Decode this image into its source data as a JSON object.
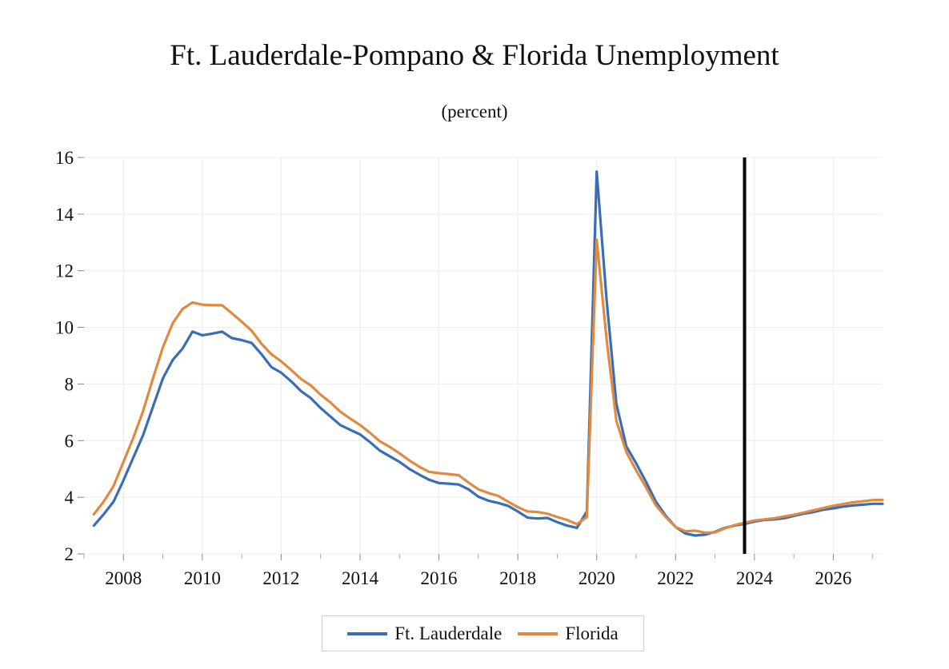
{
  "chart_data": {
    "type": "line",
    "title": "Ft. Lauderdale-Pompano & Florida Unemployment",
    "subtitle": "(percent)",
    "xlabel": "",
    "ylabel": "",
    "x_range": [
      2007.0,
      2027.25
    ],
    "ylim": [
      2,
      16
    ],
    "yticks": [
      2,
      4,
      6,
      8,
      10,
      12,
      14,
      16
    ],
    "xticks": [
      2008,
      2010,
      2012,
      2014,
      2016,
      2018,
      2020,
      2022,
      2024,
      2026
    ],
    "grid": true,
    "forecast_marker": 2023.75,
    "legend_position": "bottom-center",
    "series": [
      {
        "name": "Ft. Lauderdale",
        "color": "#3a6db5",
        "points": [
          [
            2007.25,
            3.0
          ],
          [
            2007.5,
            3.4
          ],
          [
            2007.75,
            3.85
          ],
          [
            2008.0,
            4.6
          ],
          [
            2008.25,
            5.4
          ],
          [
            2008.5,
            6.2
          ],
          [
            2008.75,
            7.2
          ],
          [
            2009.0,
            8.2
          ],
          [
            2009.25,
            8.85
          ],
          [
            2009.5,
            9.25
          ],
          [
            2009.75,
            9.85
          ],
          [
            2010.0,
            9.72
          ],
          [
            2010.25,
            9.78
          ],
          [
            2010.5,
            9.85
          ],
          [
            2010.75,
            9.62
          ],
          [
            2011.0,
            9.55
          ],
          [
            2011.25,
            9.45
          ],
          [
            2011.5,
            9.05
          ],
          [
            2011.75,
            8.6
          ],
          [
            2012.0,
            8.4
          ],
          [
            2012.25,
            8.1
          ],
          [
            2012.5,
            7.75
          ],
          [
            2012.75,
            7.5
          ],
          [
            2013.0,
            7.15
          ],
          [
            2013.25,
            6.85
          ],
          [
            2013.5,
            6.55
          ],
          [
            2013.75,
            6.38
          ],
          [
            2014.0,
            6.22
          ],
          [
            2014.25,
            5.95
          ],
          [
            2014.5,
            5.65
          ],
          [
            2014.75,
            5.45
          ],
          [
            2015.0,
            5.25
          ],
          [
            2015.25,
            5.0
          ],
          [
            2015.5,
            4.8
          ],
          [
            2015.75,
            4.62
          ],
          [
            2016.0,
            4.5
          ],
          [
            2016.25,
            4.48
          ],
          [
            2016.5,
            4.45
          ],
          [
            2016.75,
            4.28
          ],
          [
            2017.0,
            4.02
          ],
          [
            2017.25,
            3.88
          ],
          [
            2017.5,
            3.8
          ],
          [
            2017.75,
            3.7
          ],
          [
            2018.0,
            3.5
          ],
          [
            2018.25,
            3.28
          ],
          [
            2018.5,
            3.25
          ],
          [
            2018.75,
            3.27
          ],
          [
            2019.0,
            3.12
          ],
          [
            2019.25,
            3.0
          ],
          [
            2019.5,
            2.92
          ],
          [
            2019.75,
            3.5
          ],
          [
            2020.0,
            15.5
          ],
          [
            2020.25,
            11.0
          ],
          [
            2020.5,
            7.3
          ],
          [
            2020.75,
            5.8
          ],
          [
            2021.0,
            5.2
          ],
          [
            2021.25,
            4.55
          ],
          [
            2021.5,
            3.85
          ],
          [
            2021.75,
            3.35
          ],
          [
            2022.0,
            2.95
          ],
          [
            2022.25,
            2.72
          ],
          [
            2022.5,
            2.65
          ],
          [
            2022.75,
            2.68
          ],
          [
            2023.0,
            2.78
          ],
          [
            2023.25,
            2.92
          ],
          [
            2023.5,
            3.0
          ],
          [
            2023.75,
            3.06
          ],
          [
            2024.0,
            3.14
          ],
          [
            2024.25,
            3.2
          ],
          [
            2024.5,
            3.22
          ],
          [
            2024.75,
            3.26
          ],
          [
            2025.0,
            3.34
          ],
          [
            2025.25,
            3.42
          ],
          [
            2025.5,
            3.48
          ],
          [
            2025.75,
            3.56
          ],
          [
            2026.0,
            3.61
          ],
          [
            2026.25,
            3.67
          ],
          [
            2026.5,
            3.71
          ],
          [
            2026.75,
            3.74
          ],
          [
            2027.0,
            3.77
          ],
          [
            2027.25,
            3.77
          ]
        ]
      },
      {
        "name": "Florida",
        "color": "#df8a3e",
        "points": [
          [
            2007.25,
            3.4
          ],
          [
            2007.5,
            3.85
          ],
          [
            2007.75,
            4.4
          ],
          [
            2008.0,
            5.25
          ],
          [
            2008.25,
            6.1
          ],
          [
            2008.5,
            7.05
          ],
          [
            2008.75,
            8.2
          ],
          [
            2009.0,
            9.3
          ],
          [
            2009.25,
            10.15
          ],
          [
            2009.5,
            10.65
          ],
          [
            2009.75,
            10.88
          ],
          [
            2010.0,
            10.8
          ],
          [
            2010.25,
            10.78
          ],
          [
            2010.5,
            10.78
          ],
          [
            2010.75,
            10.5
          ],
          [
            2011.0,
            10.2
          ],
          [
            2011.25,
            9.88
          ],
          [
            2011.5,
            9.42
          ],
          [
            2011.75,
            9.05
          ],
          [
            2012.0,
            8.8
          ],
          [
            2012.25,
            8.5
          ],
          [
            2012.5,
            8.18
          ],
          [
            2012.75,
            7.95
          ],
          [
            2013.0,
            7.62
          ],
          [
            2013.25,
            7.35
          ],
          [
            2013.5,
            7.02
          ],
          [
            2013.75,
            6.78
          ],
          [
            2014.0,
            6.55
          ],
          [
            2014.25,
            6.28
          ],
          [
            2014.5,
            5.98
          ],
          [
            2014.75,
            5.78
          ],
          [
            2015.0,
            5.55
          ],
          [
            2015.25,
            5.3
          ],
          [
            2015.5,
            5.08
          ],
          [
            2015.75,
            4.9
          ],
          [
            2016.0,
            4.85
          ],
          [
            2016.25,
            4.82
          ],
          [
            2016.5,
            4.78
          ],
          [
            2016.75,
            4.52
          ],
          [
            2017.0,
            4.28
          ],
          [
            2017.25,
            4.15
          ],
          [
            2017.5,
            4.05
          ],
          [
            2017.75,
            3.85
          ],
          [
            2018.0,
            3.65
          ],
          [
            2018.25,
            3.5
          ],
          [
            2018.5,
            3.48
          ],
          [
            2018.75,
            3.42
          ],
          [
            2019.0,
            3.3
          ],
          [
            2019.25,
            3.2
          ],
          [
            2019.5,
            3.05
          ],
          [
            2019.75,
            3.3
          ],
          [
            2020.0,
            13.1
          ],
          [
            2020.25,
            9.6
          ],
          [
            2020.5,
            6.7
          ],
          [
            2020.75,
            5.6
          ],
          [
            2021.0,
            4.95
          ],
          [
            2021.25,
            4.35
          ],
          [
            2021.5,
            3.72
          ],
          [
            2021.75,
            3.3
          ],
          [
            2022.0,
            2.95
          ],
          [
            2022.25,
            2.8
          ],
          [
            2022.5,
            2.82
          ],
          [
            2022.75,
            2.75
          ],
          [
            2023.0,
            2.76
          ],
          [
            2023.25,
            2.9
          ],
          [
            2023.5,
            3.02
          ],
          [
            2023.75,
            3.1
          ],
          [
            2024.0,
            3.18
          ],
          [
            2024.25,
            3.22
          ],
          [
            2024.5,
            3.26
          ],
          [
            2024.75,
            3.32
          ],
          [
            2025.0,
            3.38
          ],
          [
            2025.25,
            3.46
          ],
          [
            2025.5,
            3.54
          ],
          [
            2025.75,
            3.62
          ],
          [
            2026.0,
            3.7
          ],
          [
            2026.25,
            3.76
          ],
          [
            2026.5,
            3.82
          ],
          [
            2026.75,
            3.86
          ],
          [
            2027.0,
            3.9
          ],
          [
            2027.25,
            3.91
          ]
        ]
      }
    ]
  }
}
